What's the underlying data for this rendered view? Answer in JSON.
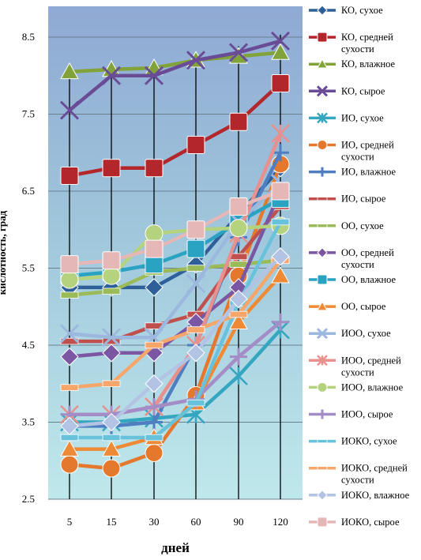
{
  "chart_data": {
    "type": "line",
    "title": "",
    "xlabel": "дней",
    "ylabel": "кислотность, град",
    "categories": [
      "5",
      "15",
      "30",
      "60",
      "90",
      "120"
    ],
    "y_ticks": [
      "2.5",
      "3.5",
      "4.5",
      "5.5",
      "6.5",
      "7.5",
      "8.5"
    ],
    "ylim": [
      2.5,
      8.9
    ],
    "grid": true,
    "legend_position": "right",
    "series": [
      {
        "name": "КО, сухое",
        "color": "#2E5F98",
        "marker": "diamond",
        "values": [
          5.25,
          5.25,
          5.25,
          5.55,
          6.2,
          6.8
        ]
      },
      {
        "name": "КО, средней сухости",
        "color": "#B3262B",
        "marker": "square",
        "values": [
          6.7,
          6.8,
          6.8,
          7.1,
          7.4,
          7.9
        ]
      },
      {
        "name": "КО, влажное",
        "color": "#82A33A",
        "marker": "triangle",
        "values": [
          8.05,
          8.08,
          8.1,
          8.2,
          8.25,
          8.3
        ]
      },
      {
        "name": "КО, сырое",
        "color": "#6A4C96",
        "marker": "x",
        "values": [
          7.55,
          8.0,
          8.0,
          8.2,
          8.3,
          8.45
        ]
      },
      {
        "name": "ИО, сухое",
        "color": "#35A6BF",
        "marker": "asterisk",
        "values": [
          3.5,
          3.5,
          3.55,
          3.6,
          4.1,
          4.7
        ]
      },
      {
        "name": "ИО, средней сухости",
        "color": "#E4792E",
        "marker": "circle",
        "values": [
          2.95,
          2.9,
          3.1,
          3.85,
          5.4,
          6.85
        ]
      },
      {
        "name": "ИО, влажное",
        "color": "#4F7FC0",
        "marker": "plus",
        "values": [
          3.45,
          3.45,
          3.5,
          4.5,
          5.9,
          7.0
        ]
      },
      {
        "name": "ИО, сырое",
        "color": "#C0504D",
        "marker": "dash",
        "values": [
          4.55,
          4.55,
          4.75,
          4.9,
          5.65,
          6.3
        ]
      },
      {
        "name": "ОО, сухое",
        "color": "#9BBB59",
        "marker": "dash",
        "values": [
          5.15,
          5.2,
          5.45,
          5.5,
          5.55,
          5.6
        ]
      },
      {
        "name": "ОО, средней сухости",
        "color": "#7B57A3",
        "marker": "diamond",
        "values": [
          4.35,
          4.4,
          4.4,
          4.8,
          5.25,
          6.5
        ]
      },
      {
        "name": "ОО, влажное",
        "color": "#2AA3C2",
        "marker": "square",
        "values": [
          5.4,
          5.45,
          5.55,
          5.75,
          6.1,
          6.4
        ]
      },
      {
        "name": "ОО, сырое",
        "color": "#EE8A36",
        "marker": "triangle",
        "values": [
          3.15,
          3.15,
          3.3,
          3.75,
          4.8,
          5.4
        ]
      },
      {
        "name": "ИОО, сухое",
        "color": "#9DB8DF",
        "marker": "x",
        "values": [
          4.65,
          4.6,
          4.6,
          5.3,
          6.1,
          6.6
        ]
      },
      {
        "name": "ИОО, средней сухости",
        "color": "#E8908D",
        "marker": "asterisk",
        "values": [
          3.6,
          3.6,
          3.7,
          4.5,
          5.95,
          7.25
        ]
      },
      {
        "name": "ИОО, влажное",
        "color": "#B5D27E",
        "marker": "circle",
        "values": [
          5.35,
          5.4,
          5.95,
          6.0,
          6.02,
          6.05
        ]
      },
      {
        "name": "ИОО, сырое",
        "color": "#A48DC6",
        "marker": "plus",
        "values": [
          3.6,
          3.6,
          3.7,
          3.8,
          4.35,
          4.8
        ]
      },
      {
        "name": "ИОКО, сухое",
        "color": "#69C2DB",
        "marker": "dash",
        "values": [
          3.3,
          3.3,
          3.3,
          3.75,
          5.05,
          6.1
        ]
      },
      {
        "name": "ИОКО, средней сухости",
        "color": "#F6A66A",
        "marker": "dash",
        "values": [
          3.95,
          4.0,
          4.5,
          4.7,
          4.9,
          5.6
        ]
      },
      {
        "name": "ИОКО, влажное",
        "color": "#B2C3E4",
        "marker": "diamond",
        "values": [
          3.45,
          3.5,
          4.0,
          4.4,
          5.1,
          5.65
        ]
      },
      {
        "name": "ИОКО, сырое",
        "color": "#E5B7B6",
        "marker": "square",
        "values": [
          5.55,
          5.6,
          5.75,
          6.0,
          6.3,
          6.5
        ]
      }
    ]
  }
}
